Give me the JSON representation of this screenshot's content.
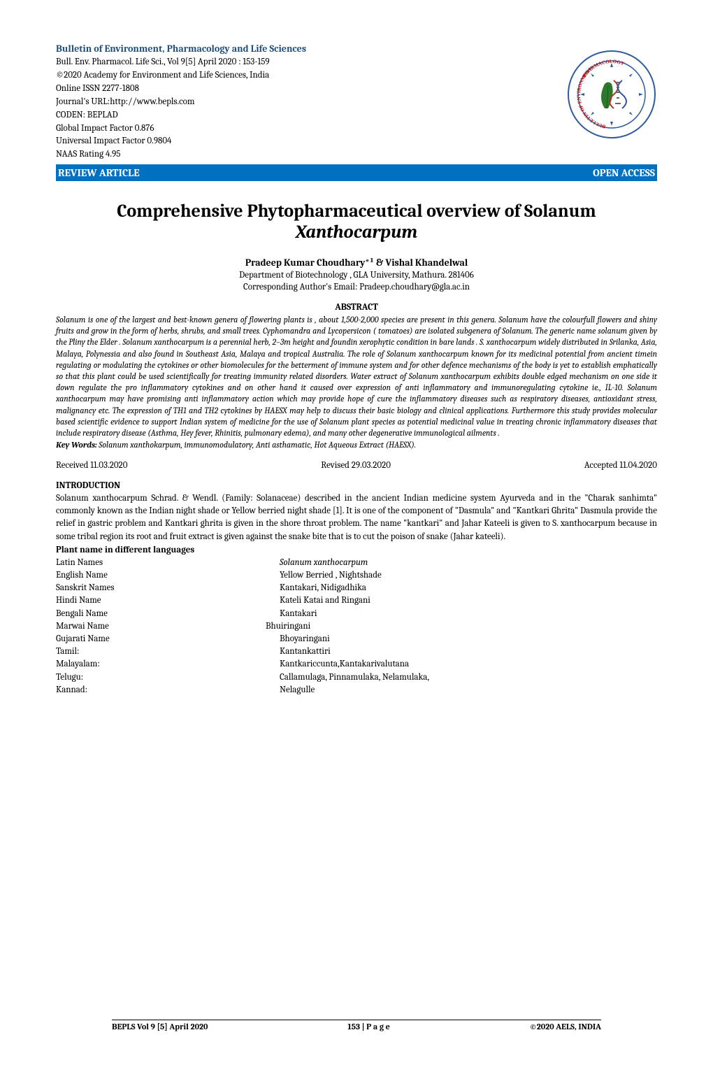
{
  "journal": {
    "title": "Bulletin of Environment, Pharmacology and Life Sciences",
    "citation": "Bull. Env. Pharmacol. Life Sci., Vol 9[5] April 2020 : 153-159",
    "copyright": "©2020 Academy for Environment and Life Sciences, India",
    "issn": "Online ISSN 2277-1808",
    "url_line": "Journal's URL:http://www.bepls.com",
    "coden": "CODEN: BEPLAD",
    "gif": "Global Impact Factor 0.876",
    "uif": "Universal Impact Factor 0.9804",
    "naas": "NAAS Rating 4.95",
    "title_color": "#1f4e79"
  },
  "bar": {
    "left": "REVIEW  ARTICLE",
    "right": "OPEN ACCESS",
    "bg_color": "#0070c0",
    "text_color": "#ffffff"
  },
  "paper": {
    "title_line1": "Comprehensive Phytopharmaceutical overview of  Solanum",
    "title_line2": "Xanthocarpum",
    "authors": "Pradeep Kumar Choudhary*¹ & Vishal Khandelwal",
    "affiliation": "Department of Biotechnology , GLA University, Mathura. 281406",
    "corresponding": "Corresponding Author's Email: Pradeep.choudhary@gla.ac.in"
  },
  "abstract": {
    "heading": "ABSTRACT",
    "body": "Solanum is one of the largest and best-known genera of flowering plants is  , about 1,500-2,000 species are present in this genera. Solanum have the colourfull flowers and shiny fruits and grow in the form of herbs, shrubs, and small trees. Cyphomandra and  Lycopersicon ( tomatoes) are isolated subgenera of Solanum. The generic name solanum given by the Pliny the Elder . Solanum xanthocarpum is a perennial herb, 2–3m height and foundin xerophytic condition in bare lands . S. xanthocarpum widely distributed in Srilanka, Asia, Malaya, Polynessia and also found in Southeast Asia, Malaya and tropical Australia. The role of Solanum xanthocarpum known for its medicinal potential from ancient timein regulating or modulating the cytokines or other biomolecules for the betterment of immune system and for other defence mechanisms of the body is yet to establish emphatically so that this plant could be used scientifically for treating immunity related disorders. Water extract of Solanum xanthocarpum exhibits double edged mechanism on one side it down regulate the pro inflammatory cytokines and on other hand it caused over expression of anti inflammatory and immunoregulating cytokine ie., IL-10. Solanum xanthocarpum may have promising anti inflammatory action which may provide hope of cure the inflammatory diseases such as respiratory diseases, antioxidant stress, malignancy etc. The expression of TH1 and TH2 cytokines by HAESX may help to discuss their basic biology and clinical applications. Furthermore this study provides molecular based scientific evidence to support  Indian system of medicine for the use  of Solanum plant species as potential medicinal value in treating chronic inflammatory diseases that include respiratory disease (Asthma, Hey fever, Rhinitis, pulmonary edema), and many other degenerative immunological ailments .",
    "keywords_label": "Key Words:",
    "keywords": " Solanum xanthokarpum, immunomodulatory, Anti asthamatic, Hot Aqueous Extract (HAESX)."
  },
  "dates": {
    "received": "Received 11.03.2020",
    "revised": "Revised 29.03.2020",
    "accepted": "Accepted 11.04.2020"
  },
  "introduction": {
    "heading": "INTRODUCTION",
    "body": "Solanum xanthocarpum  Schrad. & Wendl. (Family: Solanaceae) described in the ancient Indian medicine system Ayurveda and in the \"Charak sanhimta\" commonly known as the Indian night shade or Yellow berried night shade [1]. It is one of the component of \"Dasmula\" and \"Kantkari Ghrita\" Dasmula provide the relief in gastric problem and Kantkari ghrita is given in the shore throat problem. The name \"kantkari\" and Jahar Kateeli is given to S. xanthocarpum because in some tribal region its root and fruit extract is given against the snake bite that is to cut the poison of snake (Jahar kateeli).",
    "subheading": "Plant name in different languages"
  },
  "plant_names": [
    {
      "label": "Latin Names",
      "value": "Solanum xanthocarpum",
      "italic": true
    },
    {
      "label": "English Name",
      "value": "Yellow Berried , Nightshade",
      "italic": false
    },
    {
      "label": "Sanskrit Names",
      "value": " Kantakari, Nidigadhika",
      "italic": false
    },
    {
      "label": "Hindi Name",
      "value": "Kateli Katai and Ringani",
      "italic": false
    },
    {
      "label": "Bengali Name",
      "value": "Kantakari",
      "italic": false
    },
    {
      "label": "Marwai Name",
      "value": "Bhuiringani",
      "italic": false,
      "offset": true
    },
    {
      "label": "Gujarati Name",
      "value": "Bhoyaringani",
      "italic": false
    },
    {
      "label": "Tamil:",
      "value": "Kantankattiri",
      "italic": false
    },
    {
      "label": "Malayalam:",
      "value": "Kantkariccunta,Kantakarivalutana",
      "italic": false
    },
    {
      "label": "Telugu:",
      "value": "Callamulaga, Pinnamulaka, Nelamulaka,",
      "italic": false
    },
    {
      "label": "Kannad:",
      "value": "Nelagulle",
      "italic": false
    }
  ],
  "footer": {
    "left": "BEPLS Vol  9 [5] April 2020",
    "center": "153 | P a g e",
    "right": "©2020 AELS, INDIA"
  },
  "logo": {
    "outer_text": "PHARMACOLOGY AND LIFE SCIENCES",
    "left_text": "BULLETIN OF ENVIRONMENT",
    "colors": {
      "ring_blue": "#2e5b9c",
      "text_red": "#c00000",
      "leaf_green": "#2d7a2d",
      "dna_red": "#b03030",
      "dna_blue": "#3050a0"
    }
  }
}
